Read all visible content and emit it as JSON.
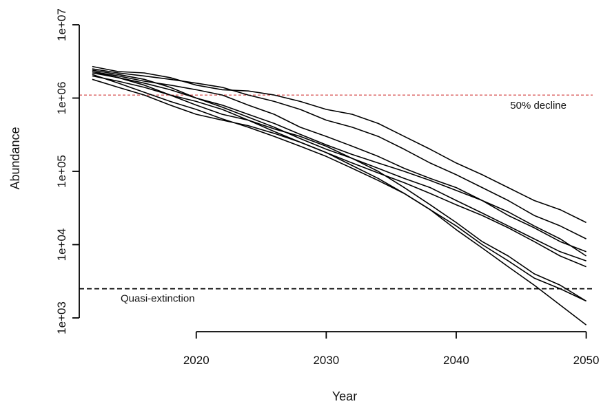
{
  "chart_data": {
    "type": "line",
    "xlabel": "Year",
    "ylabel": "Abundance",
    "y_scale": "log",
    "xlim": [
      2011,
      2050.5
    ],
    "ylim": [
      1000,
      10000000
    ],
    "x_ticks": [
      2020,
      2030,
      2040,
      2050
    ],
    "x_tick_labels": [
      "2020",
      "2030",
      "2040",
      "2050"
    ],
    "y_ticks": [
      1000,
      10000,
      100000,
      1000000,
      10000000
    ],
    "y_tick_labels": [
      "1e+03",
      "1e+04",
      "1e+05",
      "1e+06",
      "1e+07"
    ],
    "grid": false,
    "legend": "none",
    "reference_lines": [
      {
        "label": "50% decline",
        "y": 1100000,
        "style": "dashed",
        "color": "#cc2222"
      },
      {
        "label": "Quasi-extinction",
        "y": 2500,
        "style": "dashed",
        "color": "#000000"
      }
    ],
    "series": [
      {
        "x": [
          2012,
          2014,
          2016,
          2018,
          2020,
          2022,
          2024,
          2026,
          2028,
          2030,
          2032,
          2034,
          2036,
          2038,
          2040,
          2042,
          2044,
          2046,
          2048,
          2050
        ],
        "values": [
          2700000,
          2300000,
          2200000,
          1900000,
          1500000,
          1300000,
          1250000,
          1100000,
          900000,
          700000,
          600000,
          450000,
          300000,
          200000,
          130000,
          90000,
          60000,
          40000,
          30000,
          20000
        ]
      },
      {
        "x": [
          2012,
          2014,
          2016,
          2018,
          2020,
          2022,
          2024,
          2026,
          2028,
          2030,
          2032,
          2034,
          2036,
          2038,
          2040,
          2042,
          2044,
          2046,
          2048,
          2050
        ],
        "values": [
          2500000,
          2200000,
          2000000,
          1800000,
          1600000,
          1400000,
          1100000,
          900000,
          700000,
          500000,
          400000,
          300000,
          200000,
          130000,
          90000,
          60000,
          40000,
          25000,
          18000,
          12000
        ]
      },
      {
        "x": [
          2012,
          2014,
          2016,
          2018,
          2020,
          2022,
          2024,
          2026,
          2028,
          2030,
          2032,
          2034,
          2036,
          2038,
          2040,
          2042,
          2044,
          2046,
          2048,
          2050
        ],
        "values": [
          2300000,
          2000000,
          1700000,
          1500000,
          1300000,
          1100000,
          800000,
          600000,
          400000,
          300000,
          220000,
          160000,
          110000,
          80000,
          60000,
          40000,
          25000,
          17000,
          11000,
          8000
        ]
      },
      {
        "x": [
          2012,
          2014,
          2016,
          2018,
          2020,
          2022,
          2024,
          2026,
          2028,
          2030,
          2032,
          2034,
          2036,
          2038,
          2040,
          2042,
          2044,
          2046,
          2048,
          2050
        ],
        "values": [
          2200000,
          1900000,
          1600000,
          1300000,
          1000000,
          800000,
          600000,
          450000,
          320000,
          230000,
          170000,
          130000,
          100000,
          75000,
          55000,
          40000,
          28000,
          18000,
          12000,
          7000
        ]
      },
      {
        "x": [
          2012,
          2014,
          2016,
          2018,
          2020,
          2022,
          2024,
          2026,
          2028,
          2030,
          2032,
          2034,
          2036,
          2038,
          2040,
          2042,
          2044,
          2046,
          2048,
          2050
        ],
        "values": [
          2000000,
          1700000,
          1400000,
          1100000,
          900000,
          700000,
          500000,
          350000,
          250000,
          180000,
          130000,
          95000,
          70000,
          50000,
          35000,
          25000,
          17000,
          11000,
          7000,
          5000
        ]
      },
      {
        "x": [
          2012,
          2014,
          2016,
          2018,
          2020,
          2022,
          2024,
          2026,
          2028,
          2030,
          2032,
          2034,
          2036,
          2038,
          2040,
          2042,
          2044,
          2046,
          2048,
          2050
        ],
        "values": [
          2400000,
          2100000,
          1800000,
          1400000,
          1000000,
          750000,
          550000,
          400000,
          280000,
          200000,
          150000,
          110000,
          80000,
          60000,
          40000,
          27000,
          18000,
          12000,
          8000,
          6000
        ]
      },
      {
        "x": [
          2012,
          2014,
          2016,
          2018,
          2020,
          2022,
          2024,
          2026,
          2028,
          2030,
          2032,
          2034,
          2036,
          2038,
          2040,
          2042,
          2044,
          2046,
          2048,
          2050
        ],
        "values": [
          2300000,
          1900000,
          1500000,
          1100000,
          800000,
          600000,
          500000,
          380000,
          300000,
          220000,
          150000,
          100000,
          60000,
          35000,
          20000,
          11000,
          7000,
          4000,
          2800,
          1700
        ]
      },
      {
        "x": [
          2012,
          2014,
          2016,
          2018,
          2020,
          2022,
          2024,
          2026,
          2028,
          2030,
          2032,
          2034,
          2036,
          2038,
          2040,
          2042,
          2044,
          2046,
          2048,
          2050
        ],
        "values": [
          2100000,
          1600000,
          1200000,
          900000,
          700000,
          520000,
          400000,
          300000,
          220000,
          160000,
          110000,
          75000,
          50000,
          30000,
          18000,
          10000,
          6000,
          3500,
          2500,
          1700
        ]
      },
      {
        "x": [
          2012,
          2014,
          2016,
          2018,
          2020,
          2022,
          2024,
          2026,
          2028,
          2030,
          2032,
          2034,
          2036,
          2038,
          2040,
          2042,
          2044,
          2046,
          2048,
          2050
        ],
        "values": [
          1800000,
          1400000,
          1100000,
          800000,
          600000,
          500000,
          420000,
          330000,
          250000,
          180000,
          120000,
          80000,
          50000,
          30000,
          16000,
          9000,
          5000,
          2800,
          1500,
          800
        ]
      }
    ]
  }
}
